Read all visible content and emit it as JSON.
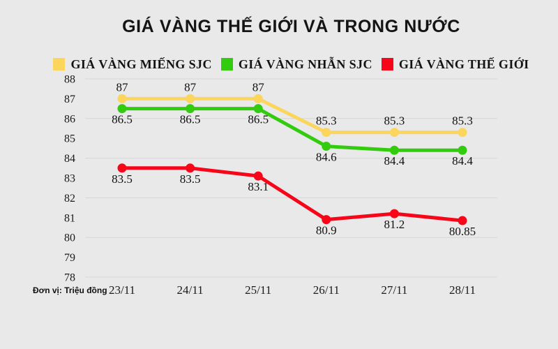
{
  "title": "GIÁ VÀNG THẾ GIỚI VÀ TRONG NƯỚC",
  "unit_note": "Đơn vị: Triệu đồng",
  "colors": {
    "background": "#e9e9e9",
    "gridline": "#d6d6d6",
    "text": "#141414",
    "sjc_bar_yellow": "#fbd55c",
    "sjc_ring_green": "#32cb0d",
    "world_red": "#f70519"
  },
  "chart_data": {
    "type": "line",
    "title": "GIÁ VÀNG THẾ GIỚI VÀ TRONG NƯỚC",
    "categories": [
      "23/11",
      "24/11",
      "25/11",
      "26/11",
      "27/11",
      "28/11"
    ],
    "series": [
      {
        "name": "GIÁ VÀNG MIẾNG SJC",
        "color": "#fbd55c",
        "values": [
          87,
          87,
          87,
          85.3,
          85.3,
          85.3
        ],
        "labels": [
          "87",
          "87",
          "87",
          "85.3",
          "85.3",
          "85.3"
        ],
        "label_position": "above"
      },
      {
        "name": "GIÁ VÀNG NHẪN SJC",
        "color": "#32cb0d",
        "values": [
          86.5,
          86.5,
          86.5,
          84.6,
          84.4,
          84.4
        ],
        "labels": [
          "86.5",
          "86.5",
          "86.5",
          "84.6",
          "84.4",
          "84.4"
        ],
        "label_position": "below"
      },
      {
        "name": "GIÁ VÀNG THẾ GIỚI",
        "color": "#f70519",
        "values": [
          83.5,
          83.5,
          83.1,
          80.9,
          81.2,
          80.85
        ],
        "labels": [
          "83.5",
          "83.5",
          "83.1",
          "80.9",
          "81.2",
          "80.85"
        ],
        "label_position": "below"
      }
    ],
    "xlabel": "",
    "ylabel": "",
    "ylim": [
      78,
      88
    ],
    "y_ticks": [
      78,
      79,
      80,
      81,
      82,
      83,
      84,
      85,
      86,
      87,
      88
    ],
    "gridline_values": [
      78,
      80,
      82,
      84,
      86,
      88
    ],
    "grid": true,
    "legend_position": "top"
  }
}
